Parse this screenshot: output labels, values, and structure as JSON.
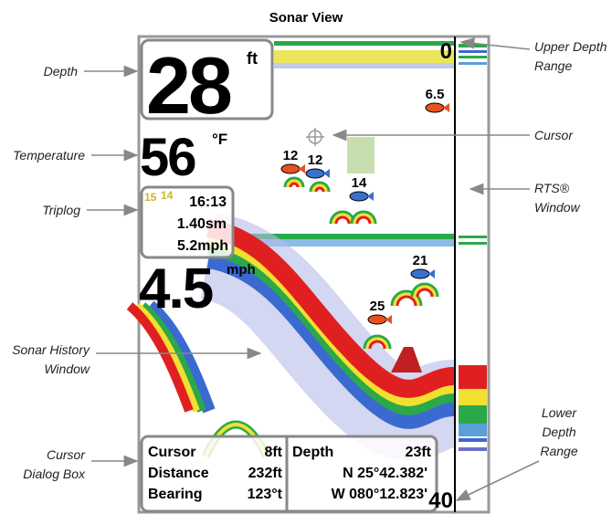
{
  "title": "Sonar View",
  "callouts": {
    "depth": [
      "Depth"
    ],
    "temperature": [
      "Temperature"
    ],
    "triplog": [
      "Triplog"
    ],
    "sonar_history": [
      "Sonar History",
      "Window"
    ],
    "cursor_dialog": [
      "Cursor",
      "Dialog Box"
    ],
    "upper_depth_range": [
      "Upper Depth",
      "Range"
    ],
    "cursor": [
      "Cursor"
    ],
    "rts_window": [
      "RTS®",
      "Window"
    ],
    "lower_depth_range": [
      "Lower",
      "Depth",
      "Range"
    ]
  },
  "screen": {
    "depth": {
      "value": "28",
      "unit": "ft"
    },
    "temperature": {
      "value": "56",
      "unit": "°F"
    },
    "triplog": {
      "marks": [
        "15",
        "14"
      ],
      "time": "16:13",
      "distance": "1.40sm",
      "speed": "5.2mph"
    },
    "speed": {
      "value": "4.5",
      "unit": "mph"
    },
    "upper_depth": "0",
    "lower_depth": "40",
    "fish": [
      "6.5",
      "12",
      "12",
      "14",
      "21",
      "25"
    ],
    "dialog": {
      "left": [
        [
          "Cursor",
          "8ft"
        ],
        [
          "Distance",
          "232ft"
        ],
        [
          "Bearing",
          "123°t"
        ]
      ],
      "right": [
        [
          "Depth",
          "23ft"
        ],
        [
          "N 25°42.382'"
        ],
        [
          "W 080°12.823'"
        ]
      ]
    }
  }
}
